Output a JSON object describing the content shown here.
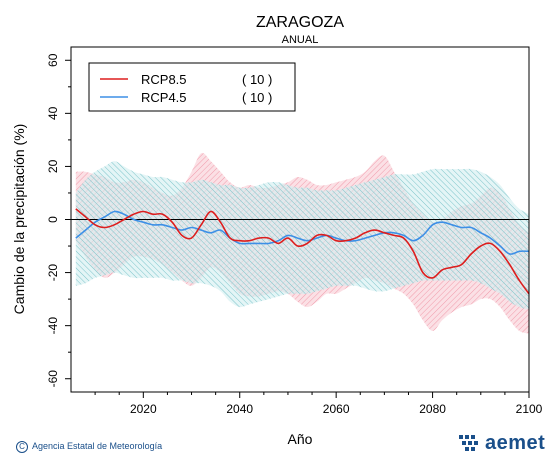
{
  "chart_data": {
    "type": "line",
    "title": "ZARAGOZA",
    "subtitle": "ANUAL",
    "xlabel": "Año",
    "ylabel": "Cambio de la precipitación (%)",
    "xlim": [
      2005,
      2100
    ],
    "ylim": [
      -65,
      65
    ],
    "x_ticks": [
      2020,
      2040,
      2060,
      2080,
      2100
    ],
    "y_ticks": [
      -60,
      -40,
      -20,
      0,
      20,
      40,
      60
    ],
    "legend_position": "top-left",
    "x": [
      2006,
      2008,
      2010,
      2012,
      2014,
      2016,
      2018,
      2020,
      2022,
      2024,
      2026,
      2028,
      2030,
      2032,
      2034,
      2036,
      2038,
      2040,
      2042,
      2044,
      2046,
      2048,
      2050,
      2052,
      2054,
      2056,
      2058,
      2060,
      2062,
      2064,
      2066,
      2068,
      2070,
      2072,
      2074,
      2076,
      2078,
      2080,
      2082,
      2084,
      2086,
      2088,
      2090,
      2092,
      2094,
      2096,
      2098,
      2100
    ],
    "series": [
      {
        "name": "RCP8.5",
        "count_label": "( 10 )",
        "color": "#dd1e1e",
        "band_color": "#f5b5c0",
        "values": [
          4,
          1,
          -2,
          -3,
          -2,
          0,
          2,
          3,
          2,
          2,
          -1,
          -6,
          -7,
          -2,
          3,
          -1,
          -7,
          -8,
          -8,
          -7,
          -7,
          -9,
          -7,
          -10,
          -9,
          -6,
          -6,
          -8,
          -8,
          -7,
          -5,
          -4,
          -5,
          -6,
          -7,
          -12,
          -20,
          -22,
          -19,
          -18,
          -17,
          -13,
          -10,
          -9,
          -12,
          -17,
          -23,
          -28
        ],
        "upper": [
          18,
          18,
          17,
          16,
          14,
          14,
          15,
          14,
          12,
          10,
          9,
          12,
          18,
          25,
          22,
          18,
          14,
          12,
          13,
          12,
          12,
          13,
          14,
          16,
          15,
          13,
          13,
          14,
          15,
          16,
          18,
          22,
          24,
          18,
          12,
          6,
          2,
          -1,
          0,
          3,
          5,
          6,
          9,
          12,
          10,
          4,
          -2,
          -5
        ],
        "lower": [
          -8,
          -14,
          -19,
          -22,
          -20,
          -17,
          -14,
          -14,
          -15,
          -17,
          -20,
          -23,
          -25,
          -22,
          -18,
          -20,
          -24,
          -28,
          -29,
          -29,
          -28,
          -27,
          -28,
          -31,
          -33,
          -31,
          -28,
          -28,
          -26,
          -24,
          -22,
          -23,
          -24,
          -26,
          -28,
          -32,
          -38,
          -42,
          -38,
          -35,
          -33,
          -32,
          -30,
          -30,
          -33,
          -38,
          -42,
          -43
        ]
      },
      {
        "name": "RCP4.5",
        "count_label": "( 10 )",
        "color": "#3d8fe6",
        "band_color": "#a8dce0",
        "values": [
          -7,
          -4,
          -1,
          1,
          3,
          2,
          0,
          -1,
          -2,
          -2,
          -3,
          -4,
          -3,
          -4,
          -5,
          -4,
          -7,
          -9,
          -9,
          -9,
          -9,
          -8,
          -6,
          -7,
          -8,
          -7,
          -6,
          -7,
          -8,
          -8,
          -7,
          -6,
          -5,
          -5,
          -6,
          -8,
          -6,
          -2,
          -1,
          -2,
          -3,
          -3,
          -5,
          -7,
          -10,
          -13,
          -12,
          -12
        ],
        "upper": [
          10,
          15,
          18,
          20,
          22,
          20,
          18,
          17,
          16,
          16,
          15,
          14,
          14,
          15,
          14,
          13,
          13,
          12,
          12,
          13,
          14,
          14,
          13,
          12,
          12,
          11,
          11,
          11,
          12,
          13,
          14,
          15,
          16,
          17,
          17,
          17,
          18,
          19,
          19,
          19,
          19,
          19,
          18,
          16,
          13,
          8,
          4,
          2
        ],
        "lower": [
          -25,
          -24,
          -22,
          -21,
          -20,
          -21,
          -22,
          -22,
          -22,
          -22,
          -23,
          -23,
          -24,
          -24,
          -25,
          -27,
          -31,
          -33,
          -32,
          -31,
          -30,
          -29,
          -28,
          -28,
          -28,
          -27,
          -26,
          -25,
          -25,
          -25,
          -26,
          -27,
          -27,
          -26,
          -25,
          -24,
          -23,
          -23,
          -23,
          -23,
          -23,
          -23,
          -24,
          -26,
          -28,
          -31,
          -33,
          -34
        ]
      }
    ]
  },
  "footer": {
    "credit": "Agencia Estatal de Meteorología",
    "copyright_symbol": "C",
    "logo_text": "aemet"
  }
}
